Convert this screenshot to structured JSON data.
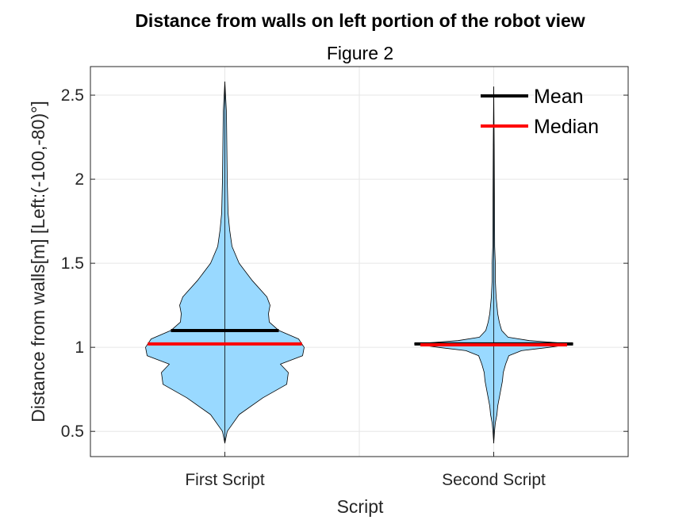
{
  "chart_data": {
    "type": "violin",
    "title": "Distance from walls on left portion of the robot view",
    "subtitle": "Figure 2",
    "xlabel": "Script",
    "ylabel": "Distance from walls[m] [Left:(-100,-80)°]",
    "categories": [
      "First Script",
      "Second Script"
    ],
    "ylim": [
      0.35,
      2.67
    ],
    "yticks": [
      0.5,
      1,
      1.5,
      2,
      2.5
    ],
    "ytick_labels": [
      "0.5",
      "1",
      "1.5",
      "2",
      "2.5"
    ],
    "grid": true,
    "legend_position": "top-right",
    "legend": [
      {
        "label": "Mean",
        "color": "#000000"
      },
      {
        "label": "Median",
        "color": "#ff0000"
      }
    ],
    "violin_color": "#99d9ff",
    "violins": [
      {
        "category": "First Script",
        "mean": 1.1,
        "median": 1.02,
        "range": [
          0.43,
          2.58
        ],
        "profile_y": [
          0.43,
          0.5,
          0.6,
          0.7,
          0.78,
          0.85,
          0.9,
          0.95,
          1.0,
          1.05,
          1.1,
          1.15,
          1.2,
          1.25,
          1.3,
          1.4,
          1.5,
          1.6,
          1.7,
          1.8,
          2.0,
          2.2,
          2.4,
          2.58
        ],
        "profile_width": [
          0.0,
          0.03,
          0.18,
          0.48,
          0.78,
          0.8,
          0.7,
          0.98,
          1.0,
          0.93,
          0.68,
          0.56,
          0.55,
          0.57,
          0.53,
          0.34,
          0.18,
          0.09,
          0.06,
          0.04,
          0.03,
          0.025,
          0.02,
          0.0
        ]
      },
      {
        "category": "Second Script",
        "mean": 1.02,
        "median": 1.015,
        "range": [
          0.43,
          2.55
        ],
        "profile_y": [
          0.43,
          0.5,
          0.55,
          0.6,
          0.65,
          0.7,
          0.75,
          0.8,
          0.85,
          0.9,
          0.95,
          0.98,
          1.0,
          1.02,
          1.04,
          1.06,
          1.1,
          1.15,
          1.2,
          1.25,
          1.3,
          1.4,
          1.5,
          1.6,
          1.8,
          2.0,
          2.2,
          2.55
        ],
        "profile_width": [
          0.0,
          0.01,
          0.02,
          0.04,
          0.05,
          0.07,
          0.09,
          0.11,
          0.12,
          0.15,
          0.19,
          0.35,
          0.7,
          1.0,
          0.45,
          0.18,
          0.1,
          0.07,
          0.05,
          0.04,
          0.03,
          0.02,
          0.02,
          0.012,
          0.01,
          0.008,
          0.006,
          0.0
        ]
      }
    ]
  }
}
